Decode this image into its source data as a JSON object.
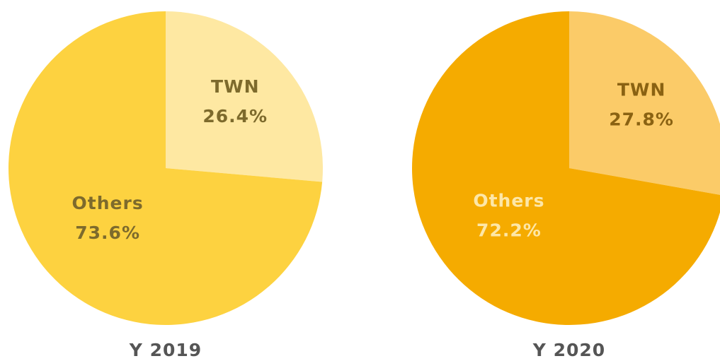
{
  "chart_data": [
    {
      "type": "pie",
      "title": "Y 2019",
      "categories": [
        "TWN",
        "Others"
      ],
      "values": [
        26.4,
        73.6
      ],
      "value_labels": [
        "26.4%",
        "73.6%"
      ],
      "colors": [
        "#fee8a2",
        "#fdd240"
      ]
    },
    {
      "type": "pie",
      "title": "Y 2020",
      "categories": [
        "TWN",
        "Others"
      ],
      "values": [
        27.8,
        72.2
      ],
      "value_labels": [
        "27.8%",
        "72.2%"
      ],
      "colors": [
        "#fbcb68",
        "#f5ab00"
      ]
    }
  ]
}
